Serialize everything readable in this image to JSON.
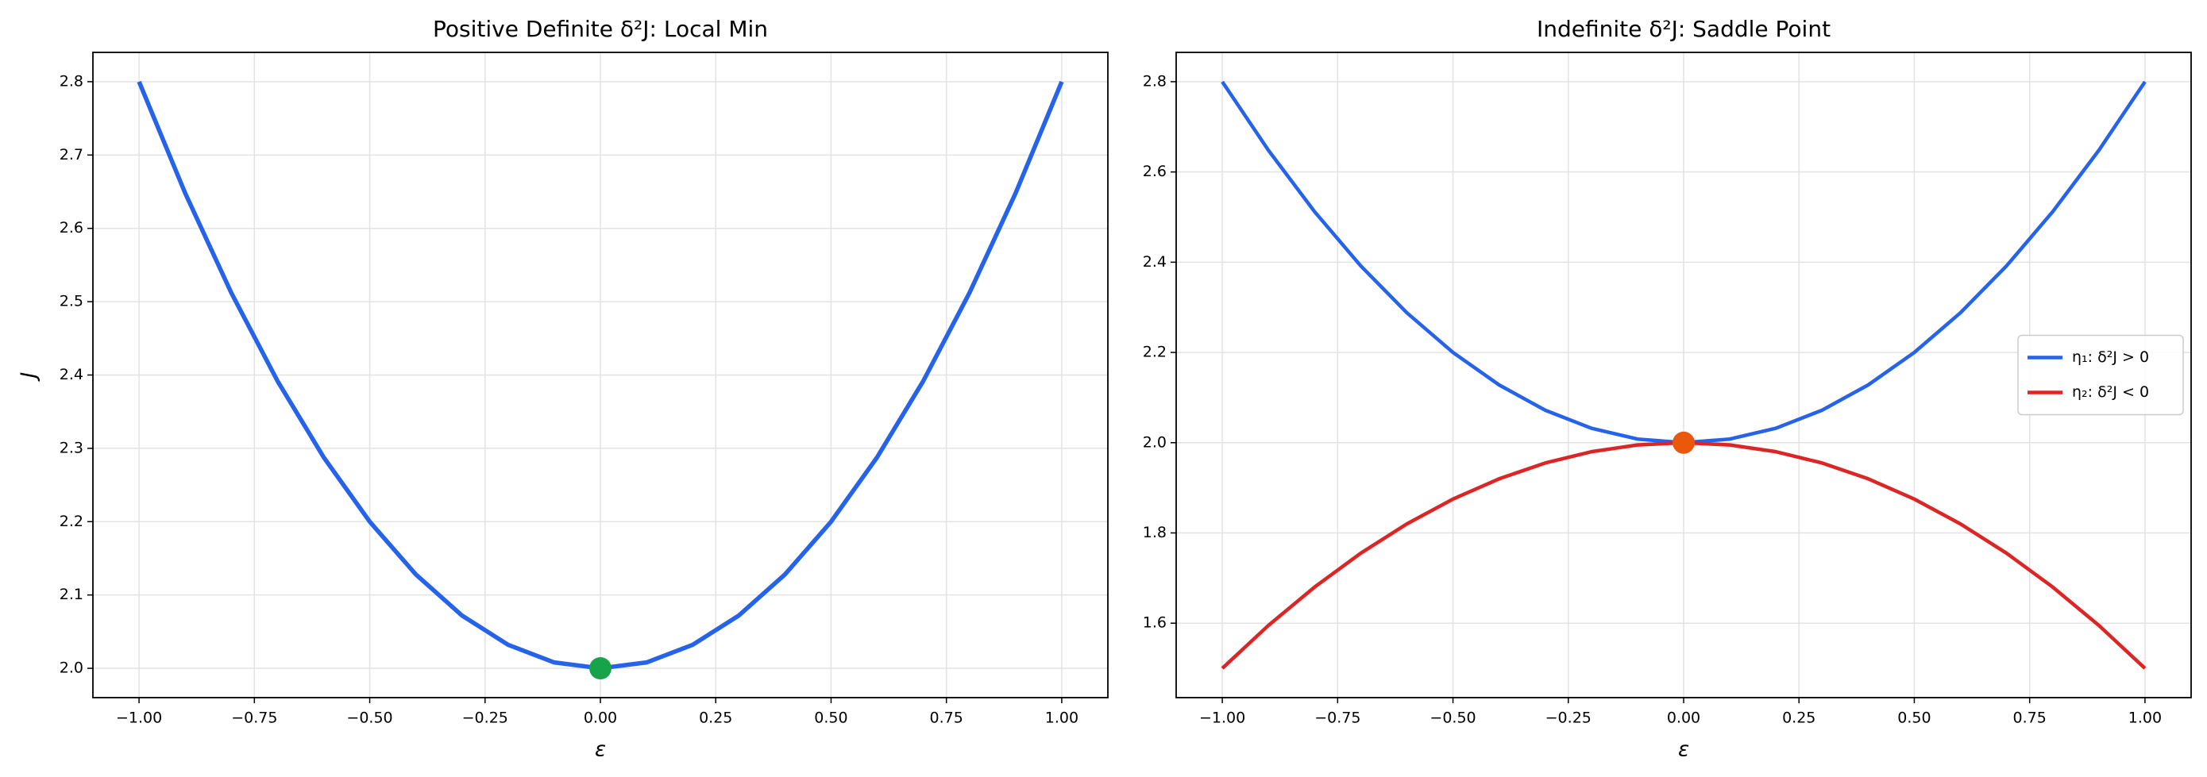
{
  "chart_data": [
    {
      "type": "line",
      "title": "Positive Definite δ²J: Local Min",
      "xlabel": "ε",
      "ylabel": "J",
      "x": [
        -1,
        -0.9,
        -0.8,
        -0.7,
        -0.6,
        -0.5,
        -0.4,
        -0.3,
        -0.2,
        -0.1,
        0,
        0.1,
        0.2,
        0.3,
        0.4,
        0.5,
        0.6,
        0.7,
        0.8,
        0.9,
        1
      ],
      "series": [
        {
          "color": "#2563eb",
          "values": [
            2.8,
            2.648,
            2.512,
            2.392,
            2.288,
            2.2,
            2.128,
            2.072,
            2.032,
            2.008,
            2,
            2.008,
            2.032,
            2.072,
            2.128,
            2.2,
            2.288,
            2.392,
            2.512,
            2.648,
            2.8
          ]
        }
      ],
      "marker": {
        "x": 0,
        "y": 2,
        "color": "#16a34a"
      },
      "xlim": [
        -1.1,
        1.1
      ],
      "ylim": [
        1.96,
        2.84
      ],
      "xticks": [
        {
          "value": -1,
          "label": "−1.00"
        },
        {
          "value": -0.75,
          "label": "−0.75"
        },
        {
          "value": -0.5,
          "label": "−0.50"
        },
        {
          "value": -0.25,
          "label": "−0.25"
        },
        {
          "value": 0,
          "label": "0.00"
        },
        {
          "value": 0.25,
          "label": "0.25"
        },
        {
          "value": 0.5,
          "label": "0.50"
        },
        {
          "value": 0.75,
          "label": "0.75"
        },
        {
          "value": 1,
          "label": "1.00"
        }
      ],
      "yticks": [
        {
          "value": 2,
          "label": "2.0"
        },
        2.1,
        2.2,
        2.3,
        2.4,
        2.5,
        2.6,
        2.7,
        2.8
      ],
      "grid": true
    },
    {
      "type": "line",
      "title": "Indefinite δ²J: Saddle Point",
      "xlabel": "ε",
      "x": [
        -1,
        -0.9,
        -0.8,
        -0.7,
        -0.6,
        -0.5,
        -0.4,
        -0.3,
        -0.2,
        -0.1,
        0,
        0.1,
        0.2,
        0.3,
        0.4,
        0.5,
        0.6,
        0.7,
        0.8,
        0.9,
        1
      ],
      "series": [
        {
          "name": "η₁: δ²J > 0",
          "color": "#2563eb",
          "values": [
            2.8,
            2.648,
            2.512,
            2.392,
            2.288,
            2.2,
            2.128,
            2.072,
            2.032,
            2.008,
            2,
            2.008,
            2.032,
            2.072,
            2.128,
            2.2,
            2.288,
            2.392,
            2.512,
            2.648,
            2.8
          ]
        },
        {
          "name": "η₂: δ²J < 0",
          "color": "#dc2626",
          "values": [
            1.5,
            1.595,
            1.68,
            1.755,
            1.82,
            1.875,
            1.92,
            1.955,
            1.98,
            1.995,
            2,
            1.995,
            1.98,
            1.955,
            1.92,
            1.875,
            1.82,
            1.755,
            1.68,
            1.595,
            1.5
          ]
        }
      ],
      "marker": {
        "x": 0,
        "y": 2,
        "color": "#ea580c"
      },
      "xlim": [
        -1.1,
        1.1
      ],
      "ylim": [
        1.435,
        2.865
      ],
      "xticks": [
        {
          "value": -1,
          "label": "−1.00"
        },
        {
          "value": -0.75,
          "label": "−0.75"
        },
        {
          "value": -0.5,
          "label": "−0.50"
        },
        {
          "value": -0.25,
          "label": "−0.25"
        },
        {
          "value": 0,
          "label": "0.00"
        },
        {
          "value": 0.25,
          "label": "0.25"
        },
        {
          "value": 0.5,
          "label": "0.50"
        },
        {
          "value": 0.75,
          "label": "0.75"
        },
        {
          "value": 1,
          "label": "1.00"
        }
      ],
      "yticks": [
        1.6,
        1.8,
        {
          "value": 2,
          "label": "2.0"
        },
        2.2,
        2.4,
        2.6,
        2.8
      ],
      "grid": true,
      "legend": "center right"
    }
  ]
}
